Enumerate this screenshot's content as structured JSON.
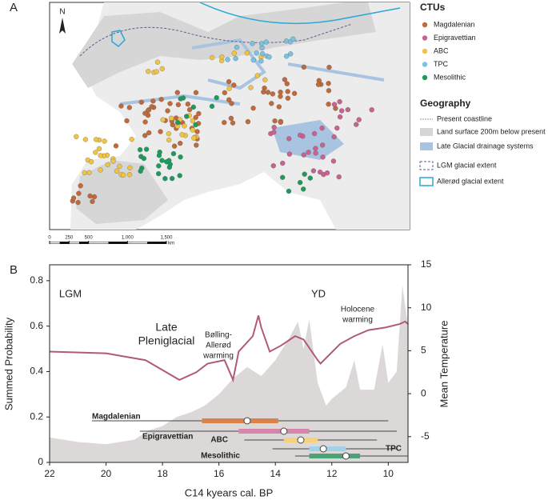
{
  "map": {
    "label": "A",
    "north": "N",
    "legend": {
      "title": "CTUs",
      "items": [
        {
          "name": "Magdalenian",
          "color": "#c0693a"
        },
        {
          "name": "Epigravettian",
          "color": "#c8628f"
        },
        {
          "name": "ABC",
          "color": "#f0c442"
        },
        {
          "name": "TPC",
          "color": "#7ac2e0"
        },
        {
          "name": "Mesolithic",
          "color": "#1e9b5c"
        }
      ]
    },
    "geography": {
      "title": "Geography",
      "items": [
        "Present coastline",
        "Land surface 200m below present",
        "Late Glacial drainage systems",
        "LGM glacial extent",
        "Allerød glacial extent"
      ]
    },
    "scale": {
      "ticks": [
        0,
        250,
        500,
        {
          "value": 1000,
          "label": "1,000"
        },
        {
          "value": 1500,
          "label": "1,500"
        }
      ],
      "unit": "km"
    }
  },
  "chart_data": {
    "type": "line",
    "panel_label": "B",
    "xlabel": "C14 kyears cal. BP",
    "ylabel": "Summed Probability",
    "y2label": "Mean Temperature",
    "xlim": [
      22,
      9.3
    ],
    "xticks": [
      22,
      20,
      18,
      16,
      14,
      12,
      10
    ],
    "ylim": [
      0,
      0.87
    ],
    "yticks": [
      0,
      0.2,
      0.4,
      0.6,
      0.8
    ],
    "y2lim": [
      -8,
      15
    ],
    "y2ticks": [
      -5,
      0,
      5,
      10,
      15
    ],
    "series": [
      {
        "color": "#dcd8d8",
        "x": [
          22,
          21,
          20,
          19,
          18.5,
          18,
          17.5,
          17,
          16.5,
          16,
          15.5,
          15,
          14.5,
          14,
          13.5,
          13.2,
          13,
          12.8,
          12.5,
          12.2,
          12,
          11.5,
          11.2,
          11,
          10.5,
          10.2,
          10,
          9.7,
          9.5,
          9.3
        ],
        "values": [
          0.11,
          0.09,
          0.08,
          0.1,
          0.14,
          0.16,
          0.2,
          0.22,
          0.25,
          0.3,
          0.37,
          0.42,
          0.38,
          0.45,
          0.55,
          0.62,
          0.5,
          0.63,
          0.35,
          0.25,
          0.28,
          0.33,
          0.45,
          0.32,
          0.32,
          0.52,
          0.35,
          0.4,
          0.78,
          0.6
        ]
      },
      {
        "color": "#b05a78",
        "axis": "y2",
        "x": [
          22,
          20,
          18.6,
          17.4,
          16.8,
          16.4,
          15.8,
          15.5,
          15.3,
          14.8,
          14.6,
          14.5,
          14.2,
          13.8,
          13.3,
          13,
          12.5,
          12.4,
          11.7,
          11.2,
          10.7,
          10.1,
          9.6,
          9.4,
          9.3
        ],
        "values": [
          4.9,
          4.7,
          3.9,
          1.6,
          2.5,
          3.5,
          3.9,
          1.6,
          4.9,
          6.7,
          9.1,
          7.7,
          4.9,
          5.6,
          6.7,
          6.3,
          3.9,
          3.5,
          5.8,
          6.7,
          7.4,
          7.7,
          8.1,
          8.4,
          8.1
        ]
      }
    ],
    "ranges": [
      {
        "name": "Magdalenian",
        "color": "#d9824a",
        "whisker": [
          20.5,
          10
        ],
        "box": [
          16.6,
          13.9
        ],
        "median": 15.0
      },
      {
        "name": "Epigravettian",
        "color": "#d686ad",
        "whisker": [
          18.8,
          9.7
        ],
        "box": [
          15.3,
          12.8
        ],
        "median": 13.7
      },
      {
        "name": "ABC",
        "color": "#f6d27a",
        "whisker": [
          15.1,
          10.4
        ],
        "box": [
          13.7,
          12.5
        ],
        "median": 13.1
      },
      {
        "name": "TPC",
        "color": "#9ed3ea",
        "whisker": [
          14.1,
          9.7
        ],
        "box": [
          12.8,
          11.5
        ],
        "median": 12.3
      },
      {
        "name": "Mesolithic",
        "color": "#4aa276",
        "whisker": [
          13.3,
          9.3
        ],
        "box": [
          12.8,
          11.0
        ],
        "median": 11.5
      }
    ],
    "annotations": [
      [
        "LGM"
      ],
      [
        "Late",
        "Pleniglacial"
      ],
      [
        "Bølling-",
        "Allerød",
        "warming"
      ],
      [
        "YD"
      ],
      [
        "Holocene",
        "warming"
      ]
    ]
  }
}
